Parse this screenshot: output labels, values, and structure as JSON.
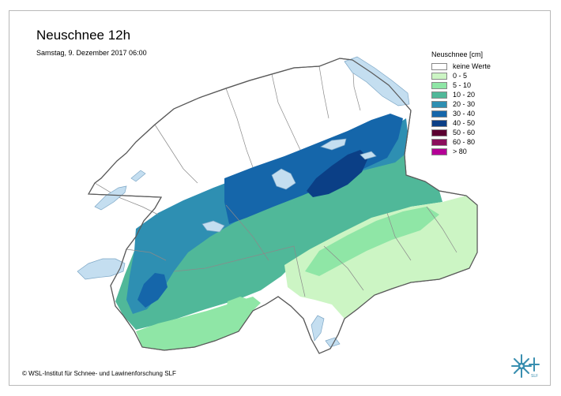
{
  "map": {
    "title": "Neuschnee 12h",
    "subtitle": "Samstag, 9. Dezember 2017 06:00",
    "legend": {
      "title": "Neuschnee [cm]",
      "items": [
        {
          "label": "keine Werte",
          "color": "#ffffff"
        },
        {
          "label": "0 - 5",
          "color": "#ccf5c4"
        },
        {
          "label": "5 - 10",
          "color": "#8fe6a6"
        },
        {
          "label": "10 - 20",
          "color": "#50b899"
        },
        {
          "label": "20 - 30",
          "color": "#2e8fb2"
        },
        {
          "label": "30 - 40",
          "color": "#1566aa"
        },
        {
          "label": "40 - 50",
          "color": "#0b3f86"
        },
        {
          "label": "50 - 60",
          "color": "#5a0030"
        },
        {
          "label": "60 - 80",
          "color": "#8a0f5c"
        },
        {
          "label": "> 80",
          "color": "#b40096"
        }
      ]
    },
    "copyright": "© WSL-Institut für Schnee- und Lawinenforschung SLF",
    "logo_text": "SLF",
    "lake_color": "#c4def0",
    "border_color": "#6b6b6b"
  }
}
